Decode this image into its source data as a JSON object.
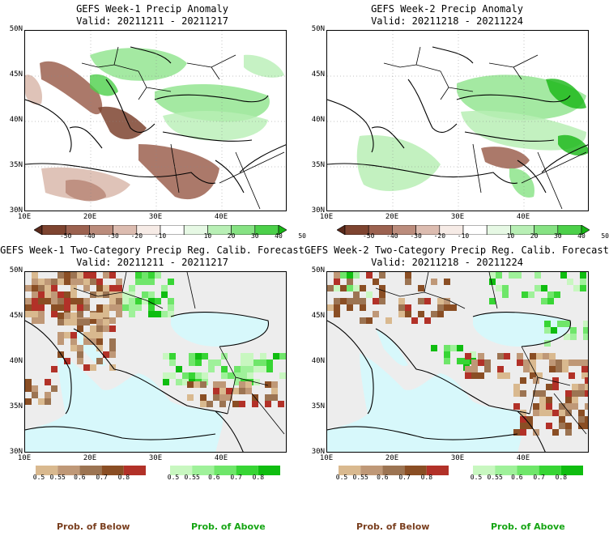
{
  "panels": [
    {
      "title": "GEFS Week-1 Precip Anomaly",
      "valid": "Valid: 20211211 - 20211217"
    },
    {
      "title": "GEFS Week-2 Precip Anomaly",
      "valid": "Valid: 20211218 - 20211224"
    },
    {
      "title": "GEFS Week-1 Two-Category Precip Reg. Calib. Forecast",
      "valid": "Valid: 20211211 - 20211217"
    },
    {
      "title": "GEFS Week-2 Two-Category Precip Reg. Calib. Forecast",
      "valid": "Valid: 20211218 - 20211224"
    }
  ],
  "lat_labels": [
    "50N",
    "45N",
    "40N",
    "35N",
    "30N"
  ],
  "lon_labels_top": [
    "10E",
    "20E",
    "30E",
    "40E"
  ],
  "lon_labels_bottom": [
    "10E",
    "20E",
    "30E",
    "40E"
  ],
  "anomaly_colorbar": {
    "labels": [
      "-50",
      "-40",
      "-30",
      "-20",
      "-10",
      "10",
      "20",
      "30",
      "40",
      "50"
    ],
    "colors": [
      "#5a2a1c",
      "#7e4430",
      "#9c6250",
      "#bb8c7c",
      "#dcbcb0",
      "#f6ebe6",
      "#ffffff",
      "#e6f8e4",
      "#b8efb5",
      "#86e283",
      "#4cd04a",
      "#16b614"
    ]
  },
  "prob_colorbar_below": {
    "labels": [
      "0.5",
      "0.55",
      "0.6",
      "0.7",
      "0.8"
    ],
    "colors": [
      "#d9b98f",
      "#bf9877",
      "#9c7452",
      "#8a4e24",
      "#b23128"
    ]
  },
  "prob_colorbar_above": {
    "labels": [
      "0.5",
      "0.55",
      "0.6",
      "0.7",
      "0.8"
    ],
    "colors": [
      "#c8f7c0",
      "#9ff19a",
      "#6fe66a",
      "#37d534",
      "#0fbd10"
    ]
  },
  "legend": {
    "below": "Prob. of Below",
    "above": "Prob. of Above"
  },
  "colors": {
    "below_text": "#7a3f1f",
    "above_text": "#16a514",
    "sea": "#d7f8fb",
    "land": "#ededed"
  }
}
